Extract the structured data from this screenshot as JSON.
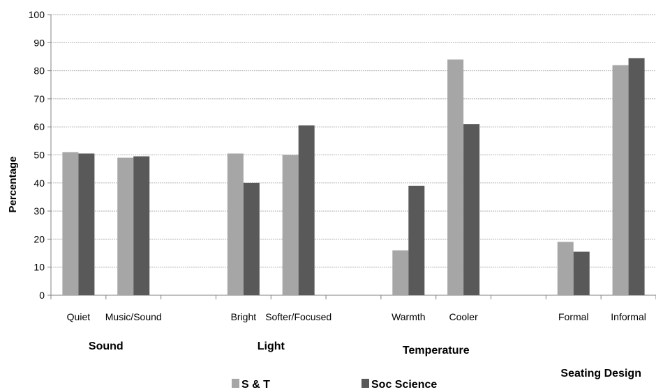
{
  "chart_data": {
    "type": "bar",
    "ylabel": "Percentage",
    "ylim": [
      0,
      100
    ],
    "yticks": [
      0,
      10,
      20,
      30,
      40,
      50,
      60,
      70,
      80,
      90,
      100
    ],
    "grid": true,
    "legend_position": "bottom",
    "categories": [
      "Quiet",
      "Music/Sound",
      "",
      "Bright",
      "Softer/Focused",
      "",
      "Warmth",
      "Cooler",
      "",
      "Formal",
      "Informal"
    ],
    "groups": [
      {
        "label": "Sound",
        "categories": [
          "Quiet",
          "Music/Sound"
        ]
      },
      {
        "label": "Light",
        "categories": [
          "Bright",
          "Softer/Focused"
        ]
      },
      {
        "label": "Temperature",
        "categories": [
          "Warmth",
          "Cooler"
        ]
      },
      {
        "label": "Seating Design",
        "categories": [
          "Formal",
          "Informal"
        ]
      }
    ],
    "series": [
      {
        "name": "S & T",
        "color": "#a6a6a6",
        "values": [
          51,
          49,
          null,
          50.5,
          50,
          null,
          16,
          84,
          null,
          19,
          82
        ]
      },
      {
        "name": "Soc Science",
        "color": "#595959",
        "values": [
          50.5,
          49.5,
          null,
          40,
          60.5,
          null,
          39,
          61,
          null,
          15.5,
          84.5
        ]
      }
    ]
  }
}
